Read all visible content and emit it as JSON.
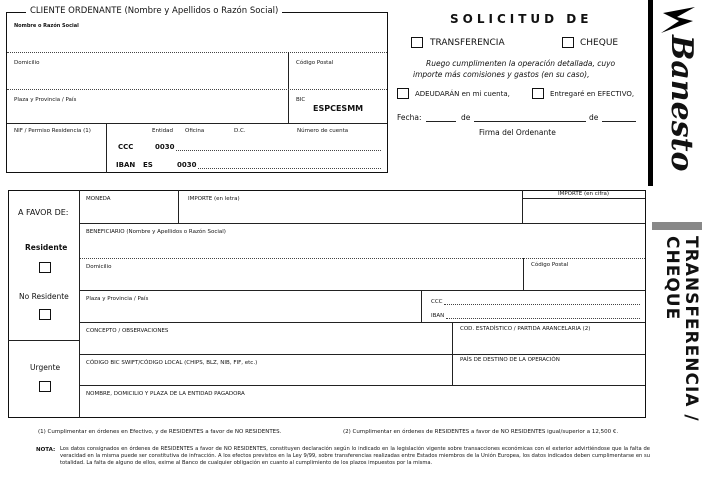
{
  "ordenante": {
    "title": "CLIENTE ORDENANTE (Nombre y Apellidos o Razón Social)",
    "nombre": "Nombre o Razón Social",
    "domicilio": "Domicilio",
    "codigo_postal": "Código Postal",
    "plaza": "Plaza y Provincia / País",
    "bic_label": "BIC",
    "bic_value": "ESPCESMM",
    "nif": "NIF / Permiso Residencia (1)",
    "entidad": "Entidad",
    "oficina": "Oficina",
    "dc": "D.C.",
    "numero_cuenta": "Número de cuenta",
    "ccc_label": "CCC",
    "ccc_entidad": "0030",
    "iban_label": "IBAN",
    "iban_country": "ES",
    "iban_entidad": "0030"
  },
  "solicitud": {
    "title": "SOLICITUD DE",
    "transferencia": "TRANSFERENCIA",
    "cheque": "CHEQUE",
    "text1": "Ruego cumplimenten la operación detallada, cuyo",
    "text2": "importe más comisiones y gastos (en su caso),",
    "adeudaran": "ADEUDARÁN en mi cuenta,",
    "efectivo": "Entregaré en EFECTIVO,",
    "fecha": "Fecha:",
    "de1": "de",
    "de2": "de",
    "firma": "Firma del Ordenante"
  },
  "brand": {
    "logo": "Banesto",
    "side_title": "TRANSFERENCIA / CHEQUE"
  },
  "beneficiario": {
    "a_favor": "A FAVOR DE:",
    "residente": "Residente",
    "no_residente": "No Residente",
    "urgente": "Urgente",
    "moneda": "MONEDA",
    "importe_letra": "IMPORTE (en letra)",
    "importe_cifra": "IMPORTE (en cifra)",
    "beneficiario": "BENEFICIARIO (Nombre y Apellidos o Razón Social)",
    "domicilio": "Domicilio",
    "codigo_postal": "Código Postal",
    "plaza": "Plaza y Provincia / País",
    "ccc": "CCC",
    "iban": "IBAN",
    "concepto": "CONCEPTO / OBSERVACIONES",
    "cod_estadistico": "COD. ESTADÍSTICO / PARTIDA ARANCELARIA (2)",
    "codigo_bic": "CÓDIGO BIC SWIFT/CÓDIGO LOCAL (CHIPS, BLZ, NIB, FIF, etc.)",
    "pais_destino": "PAÍS DE DESTINO DE LA OPERACIÓN",
    "entidad_pagadora": "NOMBRE, DOMICILIO Y PLAZA DE LA ENTIDAD PAGADORA"
  },
  "footer": {
    "note1": "(1) Cumplimentar en órdenes en Efectivo, y de RESIDENTES a favor de NO RESIDENTES.",
    "note2": "(2) Cumplimentar en órdenes de RESIDENTES a favor de NO RESIDENTES igual/superior a 12,500 €.",
    "nota_label": "NOTA:",
    "nota_text": "Los datos consignados en órdenes de RESIDENTES a favor de NO RESIDENTES, constituyen declaración según lo indicado en la legislación vigente sobre transacciones económicas con el exterior advirtiéndose que la falta de veracidad en la misma puede ser constitutiva de infracción. A los efectos previstos en la Ley 9/99, sobre transferencias realizadas entre Estados miembros de la Unión Europea, los datos indicados deben cumplimentarse en su totalidad. La falta de alguno de ellos, exime al Banco de cualquier obligación en cuanto al cumplimiento de los plazos impuestos por la misma."
  }
}
